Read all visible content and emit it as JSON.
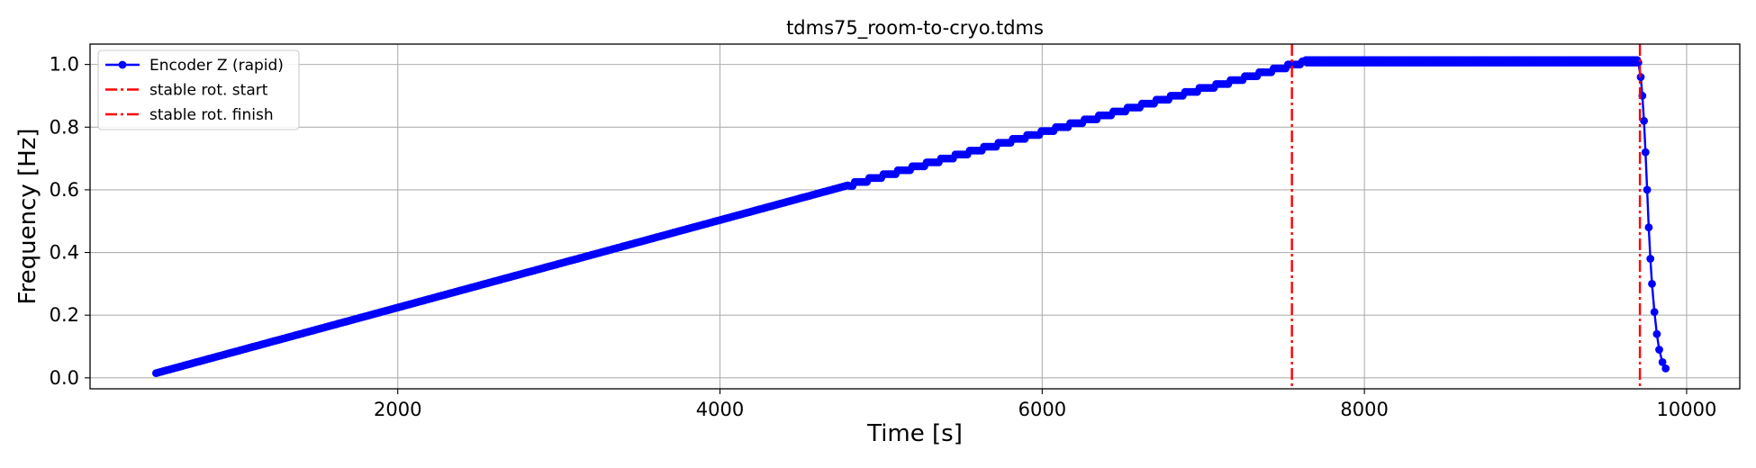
{
  "chart_data": {
    "type": "line",
    "title": "tdms75_room-to-cryo.tdms",
    "xlabel": "Time [s]",
    "ylabel": "Frequency [Hz]",
    "xlim": [
      90,
      10330
    ],
    "ylim": [
      -0.035,
      1.065
    ],
    "xticks": [
      2000,
      4000,
      6000,
      8000,
      10000
    ],
    "yticks": [
      0.0,
      0.2,
      0.4,
      0.6,
      0.8,
      1.0
    ],
    "xtick_labels": [
      "2000",
      "4000",
      "6000",
      "8000",
      "10000"
    ],
    "ytick_labels": [
      "0.0",
      "0.2",
      "0.4",
      "0.6",
      "0.8",
      "1.0"
    ],
    "grid": true,
    "legend_position": "top-left",
    "series": [
      {
        "name": "Encoder Z (rapid)",
        "color": "#0000ff",
        "style": "line-with-dots",
        "ramp": {
          "x": [
            500,
            7630
          ],
          "y": [
            0.015,
            1.01
          ]
        },
        "plateau": {
          "x": [
            7630,
            9700
          ],
          "y": 1.01
        },
        "decay": {
          "x": [
            9700,
            9715,
            9725,
            9735,
            9745,
            9755,
            9765,
            9775,
            9785,
            9800,
            9815,
            9830,
            9850,
            9870
          ],
          "y": [
            1.01,
            0.96,
            0.9,
            0.82,
            0.72,
            0.6,
            0.48,
            0.38,
            0.3,
            0.21,
            0.14,
            0.09,
            0.05,
            0.03
          ]
        }
      },
      {
        "name": "stable rot. start",
        "color": "#ff0000",
        "style": "dashdot-vertical",
        "x": 7550
      },
      {
        "name": "stable rot. finish",
        "color": "#ff0000",
        "style": "dashdot-vertical",
        "x": 9710
      }
    ]
  }
}
